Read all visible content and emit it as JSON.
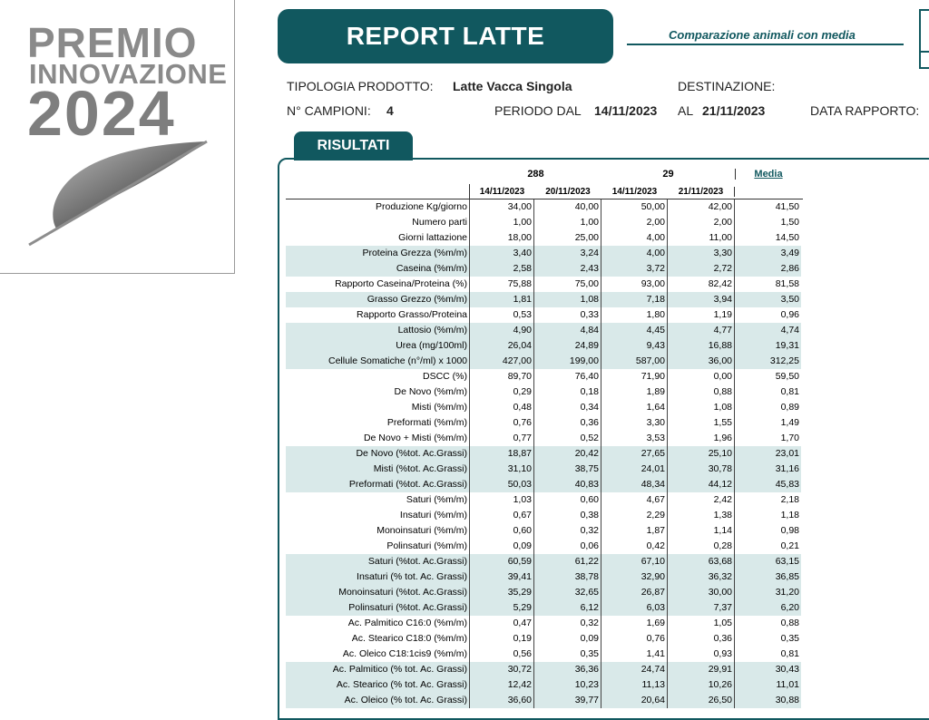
{
  "logo": {
    "line1": "PREMIO",
    "line2": "INNOVAZIONE",
    "line3": "2024"
  },
  "header": {
    "title": "REPORT LATTE",
    "subtitle": "Comparazione animali con media"
  },
  "info": {
    "tipologia_label": "TIPOLOGIA PRODOTTO:",
    "tipologia_value": "Latte Vacca Singola",
    "destinazione_label": "DESTINAZIONE:",
    "campioni_label": "N° CAMPIONI:",
    "campioni_value": "4",
    "periodo_label": "PERIODO DAL",
    "periodo_dal": "14/11/2023",
    "al_label": "AL",
    "periodo_al": "21/11/2023",
    "data_rapporto_label": "DATA RAPPORTO:"
  },
  "results": {
    "tab_label": "RISULTATI",
    "animal1": "288",
    "animal2": "29",
    "avg_label": "Media",
    "dates": [
      "14/11/2023",
      "20/11/2023",
      "14/11/2023",
      "21/11/2023"
    ],
    "rows": [
      {
        "label": "Produzione Kg/giorno",
        "v": [
          "34,00",
          "40,00",
          "50,00",
          "42,00"
        ],
        "avg": "41,50",
        "shade": false
      },
      {
        "label": "Numero parti",
        "v": [
          "1,00",
          "1,00",
          "2,00",
          "2,00"
        ],
        "avg": "1,50",
        "shade": false
      },
      {
        "label": "Giorni lattazione",
        "v": [
          "18,00",
          "25,00",
          "4,00",
          "11,00"
        ],
        "avg": "14,50",
        "shade": false
      },
      {
        "label": "Proteina Grezza (%m/m)",
        "v": [
          "3,40",
          "3,24",
          "4,00",
          "3,30"
        ],
        "avg": "3,49",
        "shade": true
      },
      {
        "label": "Caseina (%m/m)",
        "v": [
          "2,58",
          "2,43",
          "3,72",
          "2,72"
        ],
        "avg": "2,86",
        "shade": true
      },
      {
        "label": "Rapporto Caseina/Proteina (%)",
        "v": [
          "75,88",
          "75,00",
          "93,00",
          "82,42"
        ],
        "avg": "81,58",
        "shade": false
      },
      {
        "label": "Grasso Grezzo (%m/m)",
        "v": [
          "1,81",
          "1,08",
          "7,18",
          "3,94"
        ],
        "avg": "3,50",
        "shade": true
      },
      {
        "label": "Rapporto Grasso/Proteina",
        "v": [
          "0,53",
          "0,33",
          "1,80",
          "1,19"
        ],
        "avg": "0,96",
        "shade": false
      },
      {
        "label": "Lattosio (%m/m)",
        "v": [
          "4,90",
          "4,84",
          "4,45",
          "4,77"
        ],
        "avg": "4,74",
        "shade": true
      },
      {
        "label": "Urea (mg/100ml)",
        "v": [
          "26,04",
          "24,89",
          "9,43",
          "16,88"
        ],
        "avg": "19,31",
        "shade": true
      },
      {
        "label": "Cellule Somatiche (n°/ml) x 1000",
        "v": [
          "427,00",
          "199,00",
          "587,00",
          "36,00"
        ],
        "avg": "312,25",
        "shade": true
      },
      {
        "label": "DSCC (%)",
        "v": [
          "89,70",
          "76,40",
          "71,90",
          "0,00"
        ],
        "avg": "59,50",
        "shade": false
      },
      {
        "label": "De Novo (%m/m)",
        "v": [
          "0,29",
          "0,18",
          "1,89",
          "0,88"
        ],
        "avg": "0,81",
        "shade": false
      },
      {
        "label": "Misti (%m/m)",
        "v": [
          "0,48",
          "0,34",
          "1,64",
          "1,08"
        ],
        "avg": "0,89",
        "shade": false
      },
      {
        "label": "Preformati (%m/m)",
        "v": [
          "0,76",
          "0,36",
          "3,30",
          "1,55"
        ],
        "avg": "1,49",
        "shade": false
      },
      {
        "label": "De Novo + Misti (%m/m)",
        "v": [
          "0,77",
          "0,52",
          "3,53",
          "1,96"
        ],
        "avg": "1,70",
        "shade": false
      },
      {
        "label": "De Novo (%tot. Ac.Grassi)",
        "v": [
          "18,87",
          "20,42",
          "27,65",
          "25,10"
        ],
        "avg": "23,01",
        "shade": true
      },
      {
        "label": "Misti (%tot. Ac.Grassi)",
        "v": [
          "31,10",
          "38,75",
          "24,01",
          "30,78"
        ],
        "avg": "31,16",
        "shade": true
      },
      {
        "label": "Preformati  (%tot. Ac.Grassi)",
        "v": [
          "50,03",
          "40,83",
          "48,34",
          "44,12"
        ],
        "avg": "45,83",
        "shade": true
      },
      {
        "label": "Saturi (%m/m)",
        "v": [
          "1,03",
          "0,60",
          "4,67",
          "2,42"
        ],
        "avg": "2,18",
        "shade": false
      },
      {
        "label": "Insaturi (%m/m)",
        "v": [
          "0,67",
          "0,38",
          "2,29",
          "1,38"
        ],
        "avg": "1,18",
        "shade": false
      },
      {
        "label": "Monoinsaturi (%m/m)",
        "v": [
          "0,60",
          "0,32",
          "1,87",
          "1,14"
        ],
        "avg": "0,98",
        "shade": false
      },
      {
        "label": "Polinsaturi (%m/m)",
        "v": [
          "0,09",
          "0,06",
          "0,42",
          "0,28"
        ],
        "avg": "0,21",
        "shade": false
      },
      {
        "label": "Saturi (%tot. Ac.Grassi)",
        "v": [
          "60,59",
          "61,22",
          "67,10",
          "63,68"
        ],
        "avg": "63,15",
        "shade": true
      },
      {
        "label": "Insaturi (% tot. Ac. Grassi)",
        "v": [
          "39,41",
          "38,78",
          "32,90",
          "36,32"
        ],
        "avg": "36,85",
        "shade": true
      },
      {
        "label": "Monoinsaturi (%tot. Ac.Grassi)",
        "v": [
          "35,29",
          "32,65",
          "26,87",
          "30,00"
        ],
        "avg": "31,20",
        "shade": true
      },
      {
        "label": "Polinsaturi (%tot. Ac.Grassi)",
        "v": [
          "5,29",
          "6,12",
          "6,03",
          "7,37"
        ],
        "avg": "6,20",
        "shade": true
      },
      {
        "label": "Ac. Palmitico C16:0 (%m/m)",
        "v": [
          "0,47",
          "0,32",
          "1,69",
          "1,05"
        ],
        "avg": "0,88",
        "shade": false
      },
      {
        "label": "Ac. Stearico C18:0 (%m/m)",
        "v": [
          "0,19",
          "0,09",
          "0,76",
          "0,36"
        ],
        "avg": "0,35",
        "shade": false
      },
      {
        "label": "Ac. Oleico C18:1cis9 (%m/m)",
        "v": [
          "0,56",
          "0,35",
          "1,41",
          "0,93"
        ],
        "avg": "0,81",
        "shade": false
      },
      {
        "label": "Ac. Palmitico (% tot. Ac. Grassi)",
        "v": [
          "30,72",
          "36,36",
          "24,74",
          "29,91"
        ],
        "avg": "30,43",
        "shade": true
      },
      {
        "label": "Ac. Stearico (% tot. Ac. Grassi)",
        "v": [
          "12,42",
          "10,23",
          "11,13",
          "10,26"
        ],
        "avg": "11,01",
        "shade": true
      },
      {
        "label": "Ac. Oleico (% tot. Ac. Grassi)",
        "v": [
          "36,60",
          "39,77",
          "20,64",
          "26,50"
        ],
        "avg": "30,88",
        "shade": true
      }
    ]
  }
}
